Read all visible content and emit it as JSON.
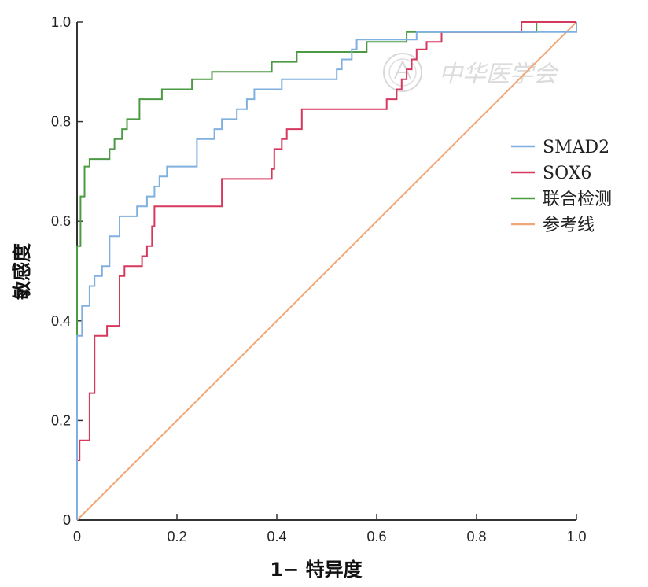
{
  "chart_data": {
    "type": "line",
    "title": "",
    "xlabel": "1− 特异度",
    "ylabel": "敏感度",
    "xlim": [
      0,
      1
    ],
    "ylim": [
      0,
      1
    ],
    "xticks": [
      "0",
      "0.2",
      "0.4",
      "0.6",
      "0.8",
      "1.0"
    ],
    "yticks": [
      "0",
      "0.2",
      "0.4",
      "0.6",
      "0.8",
      "1.0"
    ],
    "legend_position": "right",
    "watermark": "中华医学会",
    "series": [
      {
        "name": "SMAD2",
        "color": "#7fb0e0",
        "points": [
          [
            0,
            0
          ],
          [
            0,
            0.37
          ],
          [
            0.01,
            0.37
          ],
          [
            0.01,
            0.43
          ],
          [
            0.025,
            0.43
          ],
          [
            0.025,
            0.47
          ],
          [
            0.035,
            0.47
          ],
          [
            0.035,
            0.49
          ],
          [
            0.05,
            0.49
          ],
          [
            0.05,
            0.51
          ],
          [
            0.065,
            0.51
          ],
          [
            0.065,
            0.57
          ],
          [
            0.085,
            0.57
          ],
          [
            0.085,
            0.61
          ],
          [
            0.12,
            0.61
          ],
          [
            0.12,
            0.63
          ],
          [
            0.14,
            0.63
          ],
          [
            0.14,
            0.65
          ],
          [
            0.155,
            0.65
          ],
          [
            0.155,
            0.67
          ],
          [
            0.165,
            0.67
          ],
          [
            0.165,
            0.69
          ],
          [
            0.18,
            0.69
          ],
          [
            0.18,
            0.71
          ],
          [
            0.24,
            0.71
          ],
          [
            0.24,
            0.765
          ],
          [
            0.275,
            0.765
          ],
          [
            0.275,
            0.785
          ],
          [
            0.29,
            0.785
          ],
          [
            0.29,
            0.805
          ],
          [
            0.32,
            0.805
          ],
          [
            0.32,
            0.825
          ],
          [
            0.34,
            0.825
          ],
          [
            0.34,
            0.845
          ],
          [
            0.355,
            0.845
          ],
          [
            0.355,
            0.865
          ],
          [
            0.41,
            0.865
          ],
          [
            0.41,
            0.885
          ],
          [
            0.52,
            0.885
          ],
          [
            0.52,
            0.905
          ],
          [
            0.53,
            0.905
          ],
          [
            0.53,
            0.925
          ],
          [
            0.55,
            0.925
          ],
          [
            0.55,
            0.945
          ],
          [
            0.56,
            0.945
          ],
          [
            0.56,
            0.965
          ],
          [
            0.68,
            0.965
          ],
          [
            0.68,
            0.98
          ],
          [
            1,
            0.98
          ],
          [
            1,
            1
          ]
        ]
      },
      {
        "name": "SOX6",
        "color": "#d6395e",
        "points": [
          [
            0,
            0
          ],
          [
            0,
            0.12
          ],
          [
            0.005,
            0.12
          ],
          [
            0.005,
            0.16
          ],
          [
            0.025,
            0.16
          ],
          [
            0.025,
            0.255
          ],
          [
            0.035,
            0.255
          ],
          [
            0.035,
            0.37
          ],
          [
            0.06,
            0.37
          ],
          [
            0.06,
            0.39
          ],
          [
            0.085,
            0.39
          ],
          [
            0.085,
            0.49
          ],
          [
            0.095,
            0.49
          ],
          [
            0.095,
            0.51
          ],
          [
            0.13,
            0.51
          ],
          [
            0.13,
            0.53
          ],
          [
            0.14,
            0.53
          ],
          [
            0.14,
            0.55
          ],
          [
            0.15,
            0.55
          ],
          [
            0.15,
            0.59
          ],
          [
            0.155,
            0.59
          ],
          [
            0.155,
            0.63
          ],
          [
            0.29,
            0.63
          ],
          [
            0.29,
            0.685
          ],
          [
            0.39,
            0.685
          ],
          [
            0.39,
            0.705
          ],
          [
            0.395,
            0.705
          ],
          [
            0.395,
            0.745
          ],
          [
            0.41,
            0.745
          ],
          [
            0.41,
            0.765
          ],
          [
            0.42,
            0.765
          ],
          [
            0.42,
            0.785
          ],
          [
            0.45,
            0.785
          ],
          [
            0.45,
            0.825
          ],
          [
            0.62,
            0.825
          ],
          [
            0.62,
            0.845
          ],
          [
            0.64,
            0.845
          ],
          [
            0.64,
            0.865
          ],
          [
            0.65,
            0.865
          ],
          [
            0.65,
            0.885
          ],
          [
            0.66,
            0.885
          ],
          [
            0.66,
            0.905
          ],
          [
            0.67,
            0.905
          ],
          [
            0.67,
            0.925
          ],
          [
            0.68,
            0.925
          ],
          [
            0.68,
            0.945
          ],
          [
            0.7,
            0.945
          ],
          [
            0.7,
            0.96
          ],
          [
            0.73,
            0.96
          ],
          [
            0.73,
            0.98
          ],
          [
            0.89,
            0.98
          ],
          [
            0.89,
            1
          ],
          [
            1,
            1
          ]
        ]
      },
      {
        "name": "联合检测",
        "color": "#4d9a44",
        "points": [
          [
            0,
            0
          ],
          [
            0,
            0.55
          ],
          [
            0.007,
            0.55
          ],
          [
            0.007,
            0.65
          ],
          [
            0.015,
            0.65
          ],
          [
            0.015,
            0.71
          ],
          [
            0.025,
            0.71
          ],
          [
            0.025,
            0.725
          ],
          [
            0.065,
            0.725
          ],
          [
            0.065,
            0.745
          ],
          [
            0.075,
            0.745
          ],
          [
            0.075,
            0.765
          ],
          [
            0.09,
            0.765
          ],
          [
            0.09,
            0.785
          ],
          [
            0.1,
            0.785
          ],
          [
            0.1,
            0.805
          ],
          [
            0.125,
            0.805
          ],
          [
            0.125,
            0.845
          ],
          [
            0.17,
            0.845
          ],
          [
            0.17,
            0.865
          ],
          [
            0.23,
            0.865
          ],
          [
            0.23,
            0.885
          ],
          [
            0.27,
            0.885
          ],
          [
            0.27,
            0.9
          ],
          [
            0.39,
            0.9
          ],
          [
            0.39,
            0.92
          ],
          [
            0.44,
            0.92
          ],
          [
            0.44,
            0.94
          ],
          [
            0.58,
            0.94
          ],
          [
            0.58,
            0.96
          ],
          [
            0.66,
            0.96
          ],
          [
            0.66,
            0.98
          ],
          [
            0.92,
            0.98
          ],
          [
            0.92,
            1
          ],
          [
            1,
            1
          ]
        ]
      },
      {
        "name": "参考线",
        "color": "#f0a878",
        "points": [
          [
            0,
            0
          ],
          [
            1,
            1
          ]
        ]
      }
    ]
  }
}
